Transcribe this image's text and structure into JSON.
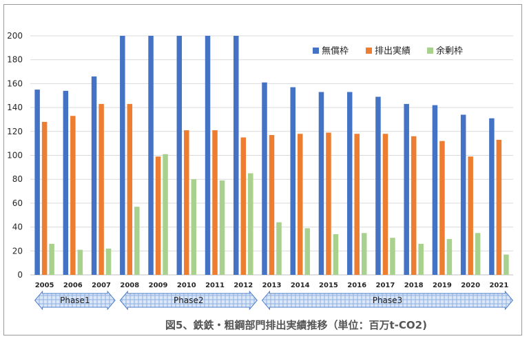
{
  "chart_data": {
    "type": "bar",
    "categories": [
      "2005",
      "2006",
      "2007",
      "2008",
      "2009",
      "2010",
      "2011",
      "2012",
      "2013",
      "2014",
      "2015",
      "2016",
      "2017",
      "2018",
      "2019",
      "2020",
      "2021"
    ],
    "series": [
      {
        "name": "無償枠",
        "color": "#4472c4",
        "values": [
          155,
          154,
          166,
          200,
          200,
          200,
          200,
          200,
          161,
          157,
          153,
          153,
          149,
          143,
          142,
          134,
          131
        ]
      },
      {
        "name": "排出実績",
        "color": "#ed7d31",
        "values": [
          128,
          133,
          143,
          143,
          99,
          121,
          121,
          115,
          117,
          118,
          119,
          118,
          118,
          116,
          112,
          99,
          113
        ]
      },
      {
        "name": "余剰枠",
        "color": "#a9d18e",
        "values": [
          26,
          21,
          22,
          57,
          101,
          80,
          79,
          85,
          44,
          39,
          34,
          35,
          31,
          26,
          30,
          35,
          17
        ]
      }
    ],
    "yticks": [
      "0",
      "20",
      "40",
      "60",
      "80",
      "100",
      "120",
      "140",
      "160",
      "180",
      "200"
    ],
    "ylim": [
      0,
      200
    ],
    "grid": true,
    "legend": "top-right",
    "phases": [
      {
        "label": "Phase1",
        "from": "2005",
        "to": "2007"
      },
      {
        "label": "Phase2",
        "from": "2008",
        "to": "2012"
      },
      {
        "label": "Phase3",
        "from": "2013",
        "to": "2021"
      }
    ],
    "caption": "図5、鉄鉄・粗鋼部門排出実績推移（単位：百万t-CO2)"
  }
}
